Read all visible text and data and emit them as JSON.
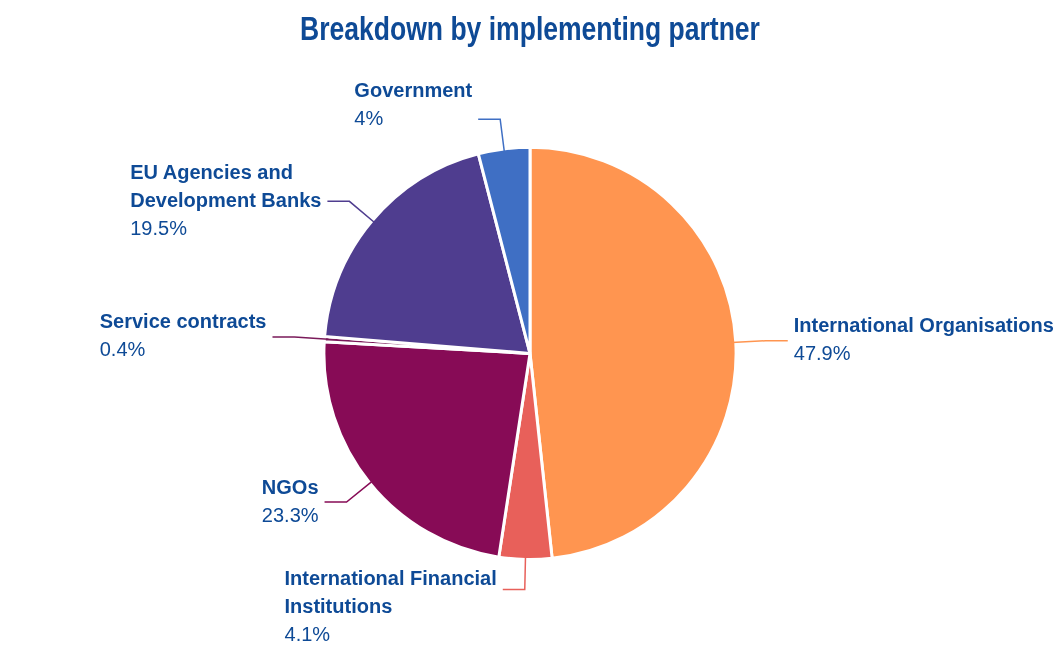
{
  "chart_data": {
    "type": "pie",
    "title": "Breakdown by implementing partner",
    "categories": [
      "International Organisations",
      "International Financial Institutions",
      "NGOs",
      "Service contracts",
      "EU Agencies and Development Banks",
      "Government"
    ],
    "values": [
      47.9,
      4.1,
      23.3,
      0.4,
      19.5,
      4
    ],
    "value_labels": [
      "47.9%",
      "4.1%",
      "23.3%",
      "0.4%",
      "19.5%",
      "4%"
    ],
    "colors": [
      "#ff9550",
      "#e8605a",
      "#870b56",
      "#7a1a5a",
      "#4f3d8f",
      "#3f6fc4"
    ],
    "legend": false
  }
}
